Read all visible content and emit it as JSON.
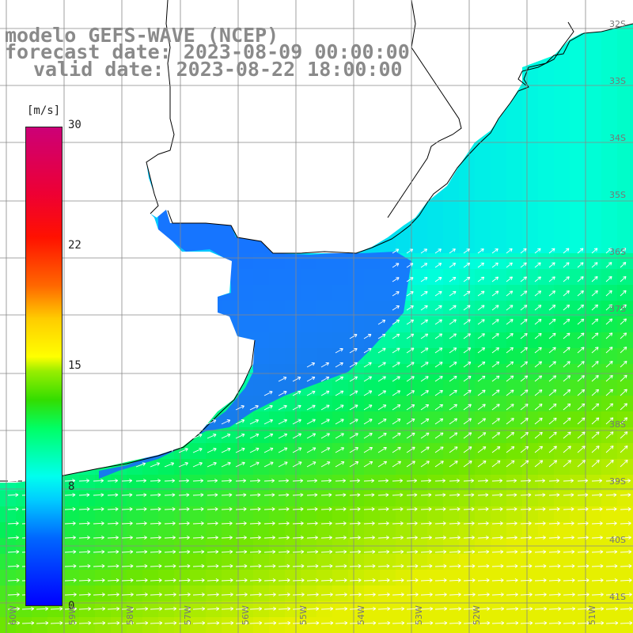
{
  "title": {
    "model": "modelo GEFS-WAVE (NCEP)",
    "forecast": "forecast date: 2023-08-09 00:00:00",
    "valid": "valid date: 2023-08-22 18:00:00"
  },
  "colorbar": {
    "unit": "[m/s]",
    "ticks": [
      "30",
      "22",
      "15",
      "8",
      "0"
    ],
    "stops": [
      "#0000ff",
      "#0066ff",
      "#00ccff",
      "#00ffee",
      "#00ff66",
      "#33dd00",
      "#99ee00",
      "#ffff00",
      "#ffcc00",
      "#ff6600",
      "#ff1100",
      "#cc0077"
    ]
  },
  "lat_labels": [
    "32S",
    "33S",
    "34S",
    "35S",
    "36S",
    "37S",
    "38S",
    "39S",
    "40S",
    "41S"
  ],
  "lon_labels": [
    "60W",
    "59W",
    "58W",
    "57W",
    "56W",
    "55W",
    "54W",
    "53W",
    "52W",
    "51W"
  ],
  "field": {
    "variable": "wind speed",
    "max_value_shown": 30,
    "min_value_shown": 0
  },
  "colors": {
    "land": "#ffffff",
    "coast": "#000000",
    "grid": "#888888",
    "arrows": "#ffffff",
    "title": "#8a8a8a"
  }
}
